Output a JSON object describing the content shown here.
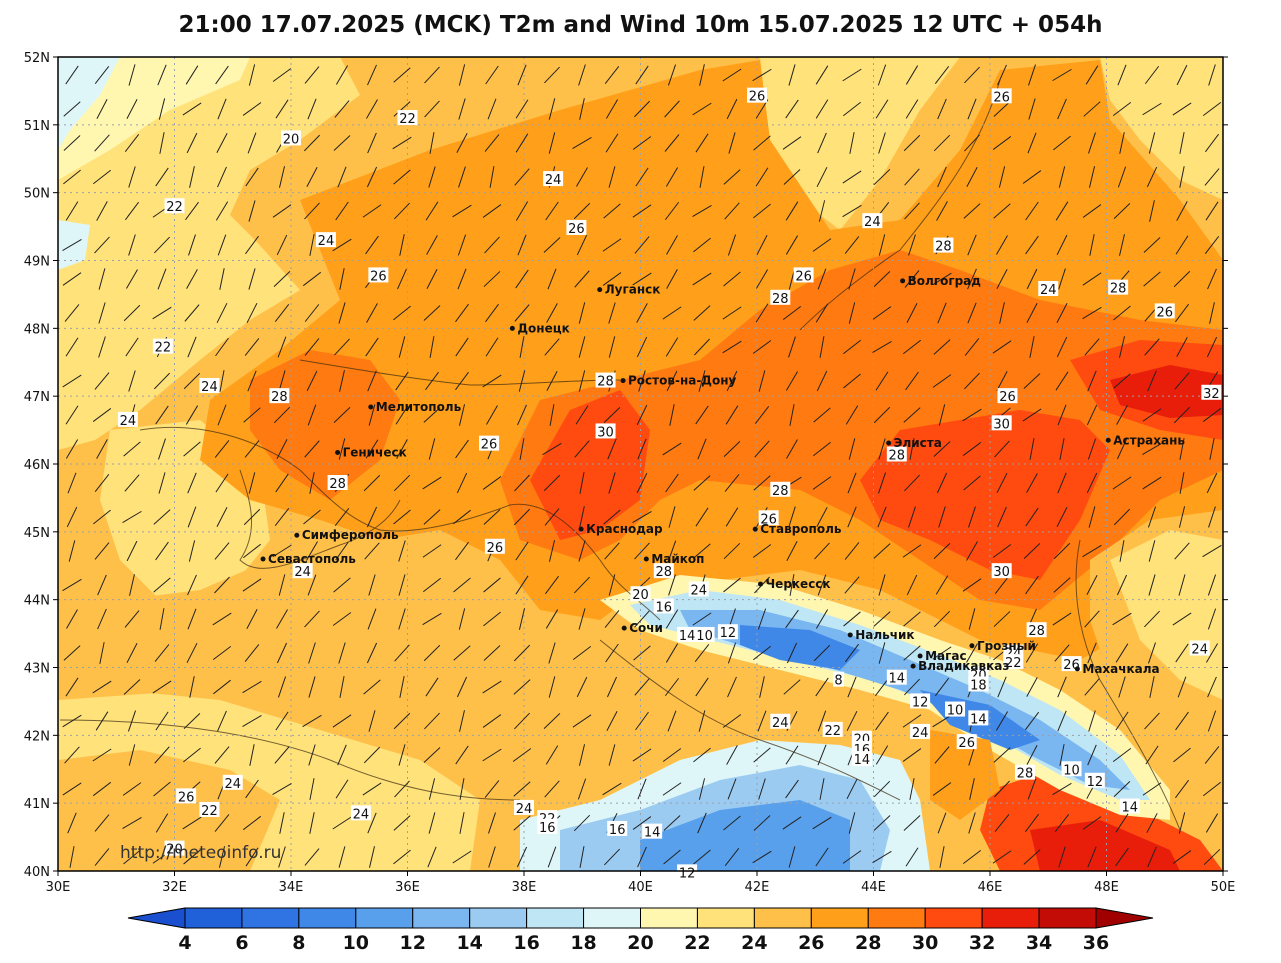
{
  "title": "21:00 17.07.2025 (MCK) T2m and Wind 10m 15.07.2025 12 UTC + 054h",
  "watermark": "http://meteoinfo.ru",
  "axes": {
    "lat_labels": [
      "52N",
      "51N",
      "50N",
      "49N",
      "48N",
      "47N",
      "46N",
      "45N",
      "44N",
      "43N",
      "42N",
      "41N",
      "40N"
    ],
    "lon_labels": [
      "30E",
      "32E",
      "34E",
      "36E",
      "38E",
      "40E",
      "42E",
      "44E",
      "46E",
      "48E",
      "50E"
    ]
  },
  "colorbar": {
    "labels": [
      "4",
      "6",
      "8",
      "10",
      "12",
      "14",
      "16",
      "18",
      "20",
      "22",
      "24",
      "26",
      "28",
      "30",
      "32",
      "34",
      "36"
    ],
    "colors": [
      "#2060d8",
      "#2f74e2",
      "#3f88e8",
      "#58a0ec",
      "#7ab6f0",
      "#9ccbf2",
      "#bfe6f4",
      "#dff6f8",
      "#fff6b0",
      "#ffe27a",
      "#ffc04a",
      "#ff9f1a",
      "#ff7a10",
      "#ff4a10",
      "#e81e0a",
      "#c40c06"
    ],
    "under_color": "#1a4fd0",
    "over_color": "#a00000"
  },
  "cities": [
    {
      "name": "Луганск",
      "lon": 39.3,
      "lat": 48.57
    },
    {
      "name": "Донецк",
      "lon": 37.8,
      "lat": 48.0
    },
    {
      "name": "Волгоград",
      "lon": 44.5,
      "lat": 48.7
    },
    {
      "name": "Ростов-на-Дону",
      "lon": 39.7,
      "lat": 47.23
    },
    {
      "name": "Мелитополь",
      "lon": 35.37,
      "lat": 46.84
    },
    {
      "name": "Геническ",
      "lon": 34.8,
      "lat": 46.17
    },
    {
      "name": "Элиста",
      "lon": 44.26,
      "lat": 46.31
    },
    {
      "name": "Астрахань",
      "lon": 48.03,
      "lat": 46.35
    },
    {
      "name": "Краснодар",
      "lon": 38.98,
      "lat": 45.04
    },
    {
      "name": "Ставрополь",
      "lon": 41.97,
      "lat": 45.04
    },
    {
      "name": "Симферополь",
      "lon": 34.1,
      "lat": 44.95
    },
    {
      "name": "Севастополь",
      "lon": 33.52,
      "lat": 44.6
    },
    {
      "name": "Майкоп",
      "lon": 40.1,
      "lat": 44.6
    },
    {
      "name": "Черкесск",
      "lon": 42.06,
      "lat": 44.23
    },
    {
      "name": "Сочи",
      "lon": 39.72,
      "lat": 43.58
    },
    {
      "name": "Нальчик",
      "lon": 43.6,
      "lat": 43.48
    },
    {
      "name": "Магас",
      "lon": 44.8,
      "lat": 43.17
    },
    {
      "name": "Грозный",
      "lon": 45.69,
      "lat": 43.32
    },
    {
      "name": "Владикавказ",
      "lon": 44.68,
      "lat": 43.02
    },
    {
      "name": "Махачкала",
      "lon": 47.5,
      "lat": 42.98
    }
  ],
  "contour_labels": [
    {
      "v": "26",
      "lon": 42.0,
      "lat": 51.43
    },
    {
      "v": "26",
      "lon": 46.2,
      "lat": 51.42
    },
    {
      "v": "22",
      "lon": 36.0,
      "lat": 51.1
    },
    {
      "v": "20",
      "lon": 34.0,
      "lat": 50.8
    },
    {
      "v": "24",
      "lon": 38.5,
      "lat": 50.2
    },
    {
      "v": "22",
      "lon": 32.0,
      "lat": 49.8
    },
    {
      "v": "24",
      "lon": 43.98,
      "lat": 49.58
    },
    {
      "v": "26",
      "lon": 38.9,
      "lat": 49.48
    },
    {
      "v": "28",
      "lon": 45.2,
      "lat": 49.22
    },
    {
      "v": "24",
      "lon": 34.6,
      "lat": 49.3
    },
    {
      "v": "26",
      "lon": 35.5,
      "lat": 48.78
    },
    {
      "v": "26",
      "lon": 42.8,
      "lat": 48.78
    },
    {
      "v": "28",
      "lon": 42.4,
      "lat": 48.45
    },
    {
      "v": "24",
      "lon": 47.0,
      "lat": 48.58
    },
    {
      "v": "28",
      "lon": 48.2,
      "lat": 48.6
    },
    {
      "v": "26",
      "lon": 49.0,
      "lat": 48.25
    },
    {
      "v": "22",
      "lon": 31.8,
      "lat": 47.73
    },
    {
      "v": "28",
      "lon": 39.4,
      "lat": 47.23
    },
    {
      "v": "24",
      "lon": 32.6,
      "lat": 47.15
    },
    {
      "v": "28",
      "lon": 33.8,
      "lat": 47.0
    },
    {
      "v": "26",
      "lon": 46.3,
      "lat": 47.0
    },
    {
      "v": "32",
      "lon": 49.8,
      "lat": 47.05
    },
    {
      "v": "24",
      "lon": 31.2,
      "lat": 46.65
    },
    {
      "v": "30",
      "lon": 39.4,
      "lat": 46.48
    },
    {
      "v": "30",
      "lon": 46.2,
      "lat": 46.6
    },
    {
      "v": "26",
      "lon": 37.4,
      "lat": 46.3
    },
    {
      "v": "28",
      "lon": 34.8,
      "lat": 45.72
    },
    {
      "v": "28",
      "lon": 44.4,
      "lat": 46.14
    },
    {
      "v": "28",
      "lon": 42.4,
      "lat": 45.62
    },
    {
      "v": "26",
      "lon": 42.2,
      "lat": 45.2
    },
    {
      "v": "26",
      "lon": 37.5,
      "lat": 44.78
    },
    {
      "v": "24",
      "lon": 34.2,
      "lat": 44.42
    },
    {
      "v": "30",
      "lon": 46.2,
      "lat": 44.42
    },
    {
      "v": "28",
      "lon": 40.4,
      "lat": 44.42
    },
    {
      "v": "24",
      "lon": 41.0,
      "lat": 44.15
    },
    {
      "v": "20",
      "lon": 40.0,
      "lat": 44.08
    },
    {
      "v": "16",
      "lon": 40.4,
      "lat": 43.9
    },
    {
      "v": "28",
      "lon": 46.8,
      "lat": 43.55
    },
    {
      "v": "14",
      "lon": 40.8,
      "lat": 43.48
    },
    {
      "v": "10",
      "lon": 41.1,
      "lat": 43.48
    },
    {
      "v": "12",
      "lon": 41.5,
      "lat": 43.52
    },
    {
      "v": "24",
      "lon": 46.4,
      "lat": 43.22
    },
    {
      "v": "22",
      "lon": 46.4,
      "lat": 43.08
    },
    {
      "v": "26",
      "lon": 47.4,
      "lat": 43.05
    },
    {
      "v": "24",
      "lon": 49.6,
      "lat": 43.28
    },
    {
      "v": "8",
      "lon": 43.4,
      "lat": 42.82
    },
    {
      "v": "14",
      "lon": 44.4,
      "lat": 42.85
    },
    {
      "v": "20",
      "lon": 45.8,
      "lat": 42.9
    },
    {
      "v": "18",
      "lon": 45.8,
      "lat": 42.75
    },
    {
      "v": "12",
      "lon": 44.8,
      "lat": 42.5
    },
    {
      "v": "10",
      "lon": 45.4,
      "lat": 42.38
    },
    {
      "v": "14",
      "lon": 45.8,
      "lat": 42.25
    },
    {
      "v": "24",
      "lon": 44.8,
      "lat": 42.05
    },
    {
      "v": "24",
      "lon": 42.4,
      "lat": 42.2
    },
    {
      "v": "22",
      "lon": 43.3,
      "lat": 42.08
    },
    {
      "v": "20",
      "lon": 43.8,
      "lat": 41.95
    },
    {
      "v": "26",
      "lon": 45.6,
      "lat": 41.9
    },
    {
      "v": "16",
      "lon": 43.8,
      "lat": 41.8
    },
    {
      "v": "14",
      "lon": 43.8,
      "lat": 41.65
    },
    {
      "v": "28",
      "lon": 46.6,
      "lat": 41.45
    },
    {
      "v": "10",
      "lon": 47.4,
      "lat": 41.5
    },
    {
      "v": "12",
      "lon": 47.8,
      "lat": 41.33
    },
    {
      "v": "24",
      "lon": 33.0,
      "lat": 41.3
    },
    {
      "v": "26",
      "lon": 32.2,
      "lat": 41.1
    },
    {
      "v": "22",
      "lon": 32.6,
      "lat": 40.9
    },
    {
      "v": "24",
      "lon": 35.2,
      "lat": 40.85
    },
    {
      "v": "24",
      "lon": 38.0,
      "lat": 40.93
    },
    {
      "v": "22",
      "lon": 38.4,
      "lat": 40.78
    },
    {
      "v": "16",
      "lon": 38.4,
      "lat": 40.65
    },
    {
      "v": "16",
      "lon": 39.6,
      "lat": 40.62
    },
    {
      "v": "14",
      "lon": 40.2,
      "lat": 40.58
    },
    {
      "v": "14",
      "lon": 48.4,
      "lat": 40.95
    },
    {
      "v": "20",
      "lon": 32.0,
      "lat": 40.33
    },
    {
      "v": "12",
      "lon": 40.8,
      "lat": 39.98
    }
  ]
}
